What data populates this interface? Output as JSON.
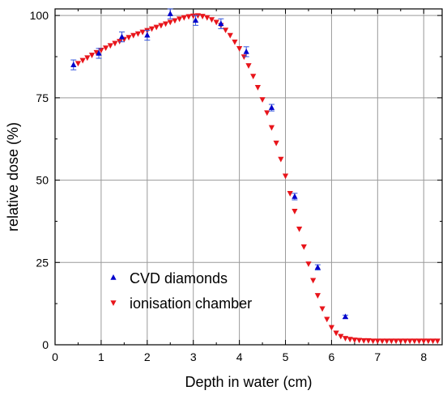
{
  "chart_data": {
    "type": "scatter",
    "title": "",
    "xlabel": "Depth in water (cm)",
    "ylabel": "relative dose (%)",
    "xlim": [
      0,
      8.4
    ],
    "ylim": [
      0,
      102
    ],
    "x_ticks": [
      0,
      1,
      2,
      3,
      4,
      5,
      6,
      7,
      8
    ],
    "y_ticks": [
      0,
      25,
      50,
      75,
      100
    ],
    "x_tick_labels": [
      "0",
      "1",
      "2",
      "3",
      "4",
      "5",
      "6",
      "7",
      "8"
    ],
    "y_tick_labels": [
      "0",
      "25",
      "50",
      "75",
      "100"
    ],
    "grid": true,
    "legend_position": "bottom-left",
    "series": [
      {
        "name": "CVD diamonds",
        "marker": "triangle-up",
        "color": "#0000cc",
        "errorbar_color": "#3355dd",
        "x": [
          0.4,
          0.95,
          1.45,
          2.0,
          2.5,
          3.05,
          3.6,
          4.15,
          4.7,
          5.2,
          5.7,
          6.3
        ],
        "y": [
          85,
          88.5,
          93.5,
          94,
          100.5,
          98.5,
          97.5,
          89,
          72,
          45,
          23.5,
          8.5
        ],
        "yerr": [
          1.5,
          1.5,
          1.5,
          1.5,
          1.5,
          1.5,
          1.5,
          1.5,
          1.0,
          1.0,
          0.8,
          0.5
        ]
      },
      {
        "name": "ionisation chamber",
        "marker": "triangle-down",
        "color": "#e8151b",
        "x": [
          0.5,
          0.6,
          0.7,
          0.8,
          0.9,
          1.0,
          1.1,
          1.2,
          1.3,
          1.4,
          1.5,
          1.6,
          1.7,
          1.8,
          1.9,
          2.0,
          2.1,
          2.2,
          2.3,
          2.4,
          2.5,
          2.6,
          2.7,
          2.8,
          2.9,
          3.0,
          3.1,
          3.2,
          3.3,
          3.4,
          3.5,
          3.6,
          3.7,
          3.8,
          3.9,
          4.0,
          4.1,
          4.2,
          4.3,
          4.4,
          4.5,
          4.6,
          4.7,
          4.8,
          4.9,
          5.0,
          5.1,
          5.2,
          5.3,
          5.4,
          5.5,
          5.6,
          5.7,
          5.8,
          5.9,
          6.0,
          6.1,
          6.2,
          6.3,
          6.4,
          6.5,
          6.6,
          6.7,
          6.8,
          6.9,
          7.0,
          7.1,
          7.2,
          7.3,
          7.4,
          7.5,
          7.6,
          7.7,
          7.8,
          7.9,
          8.0,
          8.1,
          8.2,
          8.3
        ],
        "y": [
          85.5,
          86.4,
          87.2,
          88.0,
          88.8,
          89.5,
          90.2,
          90.9,
          91.6,
          92.2,
          92.8,
          93.4,
          94.0,
          94.5,
          95.0,
          95.5,
          96.0,
          96.5,
          97.0,
          97.5,
          98.0,
          98.5,
          99.0,
          99.4,
          99.7,
          99.9,
          100.0,
          99.8,
          99.4,
          98.8,
          98.0,
          97.0,
          95.6,
          94.0,
          92.0,
          90.0,
          87.5,
          84.8,
          81.6,
          78.2,
          74.5,
          70.5,
          66.0,
          61.3,
          56.4,
          51.3,
          46.0,
          40.6,
          35.2,
          29.8,
          24.6,
          19.6,
          15.0,
          11.0,
          7.8,
          5.3,
          3.6,
          2.6,
          2.0,
          1.7,
          1.5,
          1.4,
          1.3,
          1.3,
          1.2,
          1.2,
          1.2,
          1.2,
          1.2,
          1.2,
          1.2,
          1.2,
          1.2,
          1.2,
          1.2,
          1.2,
          1.2,
          1.2,
          1.2
        ]
      }
    ]
  }
}
